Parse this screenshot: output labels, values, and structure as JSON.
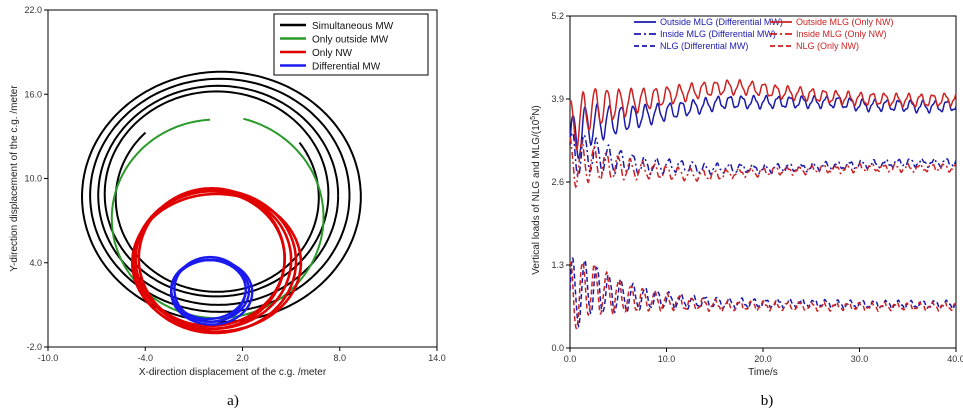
{
  "chart_data": [
    {
      "type": "line",
      "xlabel": "X-direction displacement of the c.g. /meter",
      "ylabel": "Y-direction displacement of the c.g. /meter",
      "xlim": [
        -10.0,
        14.0
      ],
      "ylim": [
        -2.0,
        22.0
      ],
      "xticks": [
        "-10.0",
        "-4.0",
        "2.0",
        "8.0",
        "14.0"
      ],
      "yticks": [
        "-2.0",
        "4.0",
        "10.0",
        "16.0",
        "22.0"
      ],
      "legend_position": "top-right",
      "caption": "a)",
      "series": [
        {
          "name": "Simultaneous MW",
          "color": "#000000",
          "description": "four concentric loops centered near (0.5, 8.8), radius ~7.0 to ~8.7"
        },
        {
          "name": "Only outside MW",
          "color": "#2a9a2a",
          "description": "spiral centered near (0.5, 7.0), radius ~7.0, from (-0.8,14.2) around to (4.2,12.5)"
        },
        {
          "name": "Only NW",
          "color": "#e00000",
          "description": "several loops centered near (0.0, 4.2), radius ~4.5 to ~5.0"
        },
        {
          "name": "Differential MW",
          "color": "#1a1aee",
          "description": "several loops centered near (0.0, 2.0), radius ~2.2 to ~2.5"
        }
      ]
    },
    {
      "type": "line",
      "xlabel": "Time/s",
      "ylabel": "Vertical loads of NLG and MLG/(10^5N)",
      "ylabel_display": "Vertical loads of NLG and MLG/(10",
      "ylabel_sup": "5",
      "ylabel_tail": "N)",
      "xlim": [
        0.0,
        40.0
      ],
      "ylim": [
        0.0,
        5.2
      ],
      "xticks": [
        "0.0",
        "10.0",
        "20.0",
        "30.0",
        "40.0"
      ],
      "yticks": [
        "0.0",
        "1.3",
        "2.6",
        "3.9",
        "5.2"
      ],
      "legend_position": "top",
      "caption": "b)",
      "series": [
        {
          "name": "Outside MLG (Differential MW)",
          "color": "#1a1aaa",
          "dash": "solid",
          "x": [
            0,
            2,
            4,
            6,
            8,
            10,
            12,
            14,
            16,
            18,
            20,
            22,
            24,
            26,
            28,
            30,
            32,
            34,
            36,
            38,
            40
          ],
          "y": [
            3.2,
            3.5,
            3.55,
            3.6,
            3.65,
            3.7,
            3.75,
            3.8,
            3.85,
            3.85,
            3.85,
            3.85,
            3.85,
            3.85,
            3.85,
            3.8,
            3.8,
            3.8,
            3.78,
            3.78,
            3.8
          ]
        },
        {
          "name": "Outside MLG (Only NW)",
          "color": "#cc2222",
          "dash": "solid",
          "x": [
            0,
            2,
            4,
            6,
            8,
            10,
            12,
            14,
            16,
            18,
            20,
            22,
            24,
            26,
            28,
            30,
            32,
            34,
            36,
            38,
            40
          ],
          "y": [
            3.4,
            3.75,
            3.8,
            3.85,
            3.9,
            3.95,
            4.0,
            4.05,
            4.08,
            4.08,
            4.05,
            4.0,
            3.98,
            3.95,
            3.92,
            3.9,
            3.9,
            3.88,
            3.88,
            3.88,
            3.9
          ]
        },
        {
          "name": "Inside MLG (Differential MW)",
          "color": "#1a1aaa",
          "dash": "dashdot",
          "x": [
            0,
            2,
            4,
            6,
            8,
            10,
            12,
            14,
            16,
            18,
            20,
            22,
            24,
            26,
            28,
            30,
            32,
            34,
            36,
            38,
            40
          ],
          "y": [
            3.0,
            3.05,
            2.95,
            2.9,
            2.85,
            2.85,
            2.85,
            2.8,
            2.82,
            2.82,
            2.8,
            2.82,
            2.82,
            2.85,
            2.85,
            2.88,
            2.88,
            2.9,
            2.9,
            2.9,
            2.9
          ]
        },
        {
          "name": "Inside MLG (Only NW)",
          "color": "#cc2222",
          "dash": "dashdot",
          "x": [
            0,
            2,
            4,
            6,
            8,
            10,
            12,
            14,
            16,
            18,
            20,
            22,
            24,
            26,
            28,
            30,
            32,
            34,
            36,
            38,
            40
          ],
          "y": [
            2.9,
            2.9,
            2.85,
            2.8,
            2.78,
            2.75,
            2.72,
            2.7,
            2.72,
            2.75,
            2.75,
            2.78,
            2.78,
            2.8,
            2.8,
            2.82,
            2.82,
            2.82,
            2.82,
            2.82,
            2.82
          ]
        },
        {
          "name": "NLG (Differential MW)",
          "color": "#1a1aaa",
          "dash": "dashed",
          "x": [
            0,
            2,
            4,
            6,
            8,
            10,
            12,
            14,
            16,
            18,
            20,
            22,
            24,
            26,
            28,
            30,
            32,
            34,
            36,
            38,
            40
          ],
          "y": [
            0.8,
            0.95,
            0.85,
            0.8,
            0.78,
            0.75,
            0.72,
            0.72,
            0.7,
            0.7,
            0.7,
            0.7,
            0.7,
            0.7,
            0.68,
            0.68,
            0.68,
            0.68,
            0.68,
            0.68,
            0.68
          ]
        },
        {
          "name": "NLG (Only NW)",
          "color": "#cc2222",
          "dash": "dashed",
          "x": [
            0,
            2,
            4,
            6,
            8,
            10,
            12,
            14,
            16,
            18,
            20,
            22,
            24,
            26,
            28,
            30,
            32,
            34,
            36,
            38,
            40
          ],
          "y": [
            0.75,
            0.95,
            0.85,
            0.78,
            0.75,
            0.72,
            0.7,
            0.68,
            0.66,
            0.66,
            0.66,
            0.66,
            0.66,
            0.65,
            0.65,
            0.65,
            0.65,
            0.65,
            0.65,
            0.65,
            0.65
          ]
        }
      ]
    }
  ]
}
